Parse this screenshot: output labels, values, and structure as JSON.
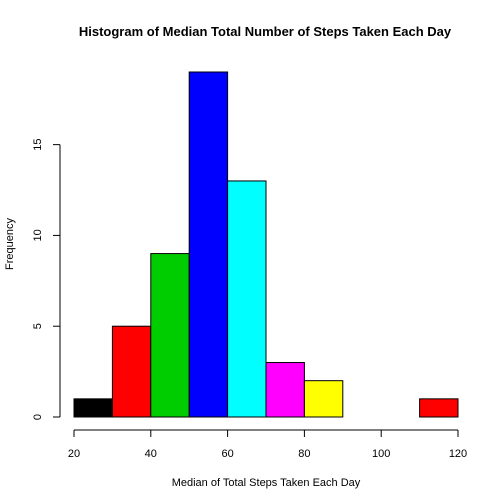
{
  "chart_data": {
    "type": "bar",
    "title": "Histogram of Median Total Number of Steps Taken Each Day",
    "xlabel": "Median of Total Steps Taken Each Day",
    "ylabel": "Frequency",
    "bins": [
      {
        "x0": 20,
        "x1": 30,
        "count": 1,
        "color": "#000000"
      },
      {
        "x0": 30,
        "x1": 40,
        "count": 5,
        "color": "#ff0000"
      },
      {
        "x0": 40,
        "x1": 50,
        "count": 9,
        "color": "#00cd00"
      },
      {
        "x0": 50,
        "x1": 60,
        "count": 19,
        "color": "#0000ff"
      },
      {
        "x0": 60,
        "x1": 70,
        "count": 13,
        "color": "#00ffff"
      },
      {
        "x0": 70,
        "x1": 80,
        "count": 3,
        "color": "#ff00ff"
      },
      {
        "x0": 80,
        "x1": 90,
        "count": 2,
        "color": "#ffff00"
      },
      {
        "x0": 90,
        "x1": 100,
        "count": 0,
        "color": "#bebebe"
      },
      {
        "x0": 100,
        "x1": 110,
        "count": 0,
        "color": "#000000"
      },
      {
        "x0": 110,
        "x1": 120,
        "count": 1,
        "color": "#ff0000"
      }
    ],
    "xlim": [
      20,
      120
    ],
    "ylim": [
      0,
      19
    ],
    "xticks": [
      20,
      40,
      60,
      80,
      100,
      120
    ],
    "yticks": [
      0,
      5,
      10,
      15
    ],
    "grid": false,
    "legend": "none"
  }
}
